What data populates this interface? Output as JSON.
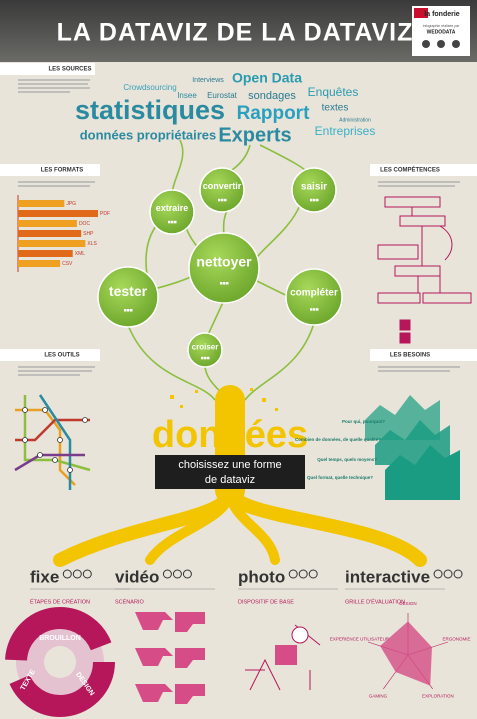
{
  "header": {
    "title": "LA DATAVIZ DE LA DATAVIZ",
    "logo": "la fonderie",
    "credit": "Infographie réalisée par",
    "credit_brand": "WEDODATA"
  },
  "sections": {
    "sources": "LES SOURCES",
    "formats": "LES FORMATS",
    "competences": "LES COMPÉTENCES",
    "outils": "LES OUTILS",
    "besoins": "LES BESOINS"
  },
  "sources_cloud": [
    "Crowdsourcing",
    "Interviews",
    "Open Data",
    "Insee",
    "Eurostat",
    "sondages",
    "Enquêtes",
    "statistiques",
    "Rapport",
    "textes",
    "Administration",
    "données propriétaires",
    "Experts",
    "Entreprises"
  ],
  "actions": [
    "convertir",
    "extraire",
    "saisir",
    "nettoyer",
    "tester",
    "compléter",
    "croiser"
  ],
  "center": {
    "title": "données",
    "subtitle": "choisissez une forme",
    "subtitle2": "de dataviz"
  },
  "formats": {
    "labels": [
      "JPG",
      "PDF",
      "DOC",
      "SHP",
      "XLS",
      "XML",
      "CSV"
    ],
    "values": [
      55,
      95,
      70,
      75,
      80,
      65,
      50
    ]
  },
  "besoins": [
    "Pour qui, pourquoi?",
    "Combien de données, de quelle qualité?",
    "Quel temps, quels moyens?",
    "Quel format, quelle technique?"
  ],
  "outputs": [
    {
      "title": "fixe",
      "subtitle": "ÉTAPES DE CRÉATION"
    },
    {
      "title": "vidéo",
      "subtitle": "SCÉNARIO"
    },
    {
      "title": "photo",
      "subtitle": "DISPOSITIF DE BASE"
    },
    {
      "title": "interactive",
      "subtitle": "GRILLE D'ÉVALUATION"
    }
  ],
  "steps": [
    "BROUILLON",
    "TEXTE",
    "DESIGN"
  ],
  "radar": [
    "DESIGN",
    "ERGONOMIE",
    "EXPLORATION",
    "GAMING",
    "EXPERIENCE UTILISATEUR"
  ]
}
